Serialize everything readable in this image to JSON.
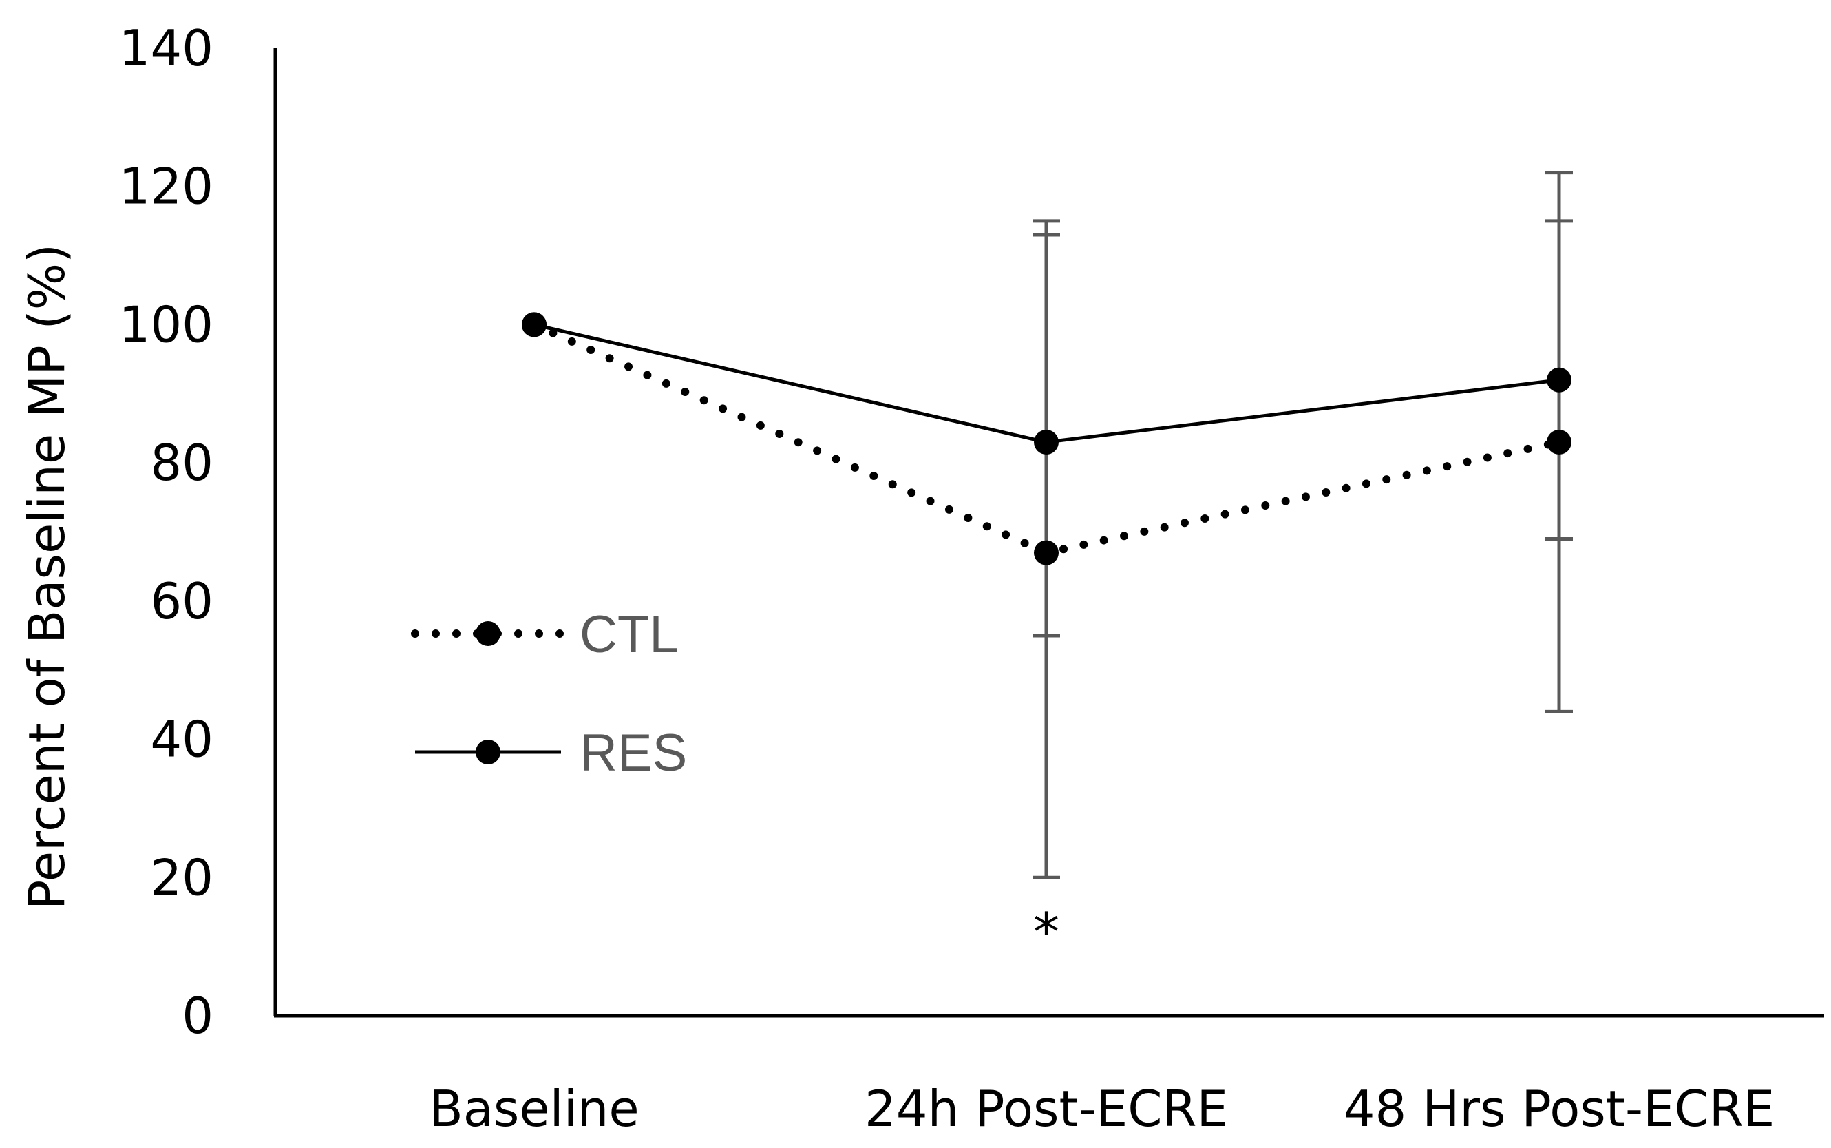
{
  "chart_data": {
    "type": "line",
    "ylabel": "Percent of Baseline MP (%)",
    "categories": [
      "Baseline",
      "24h Post-ECRE",
      "48 Hrs Post-ECRE"
    ],
    "ylim": [
      0,
      140
    ],
    "yticks": [
      0,
      20,
      40,
      60,
      80,
      100,
      120,
      140
    ],
    "grid": false,
    "legend": {
      "position": "left-middle"
    },
    "series": [
      {
        "name": "CTL",
        "style": "dotted",
        "color": "#000000",
        "values": [
          100,
          67,
          83
        ],
        "error_low": [
          null,
          20,
          44
        ],
        "error_high": [
          null,
          113,
          115
        ]
      },
      {
        "name": "RES",
        "style": "solid",
        "color": "#000000",
        "values": [
          100,
          83,
          92
        ],
        "error_low": [
          null,
          55,
          69
        ],
        "error_high": [
          null,
          115,
          122
        ]
      }
    ],
    "annotations": [
      {
        "text": "*",
        "category": "24h Post-ECRE",
        "y": 15
      }
    ],
    "colors": {
      "axis": "#000000",
      "error_bar": "#595959",
      "legend_text": "#595959"
    }
  }
}
